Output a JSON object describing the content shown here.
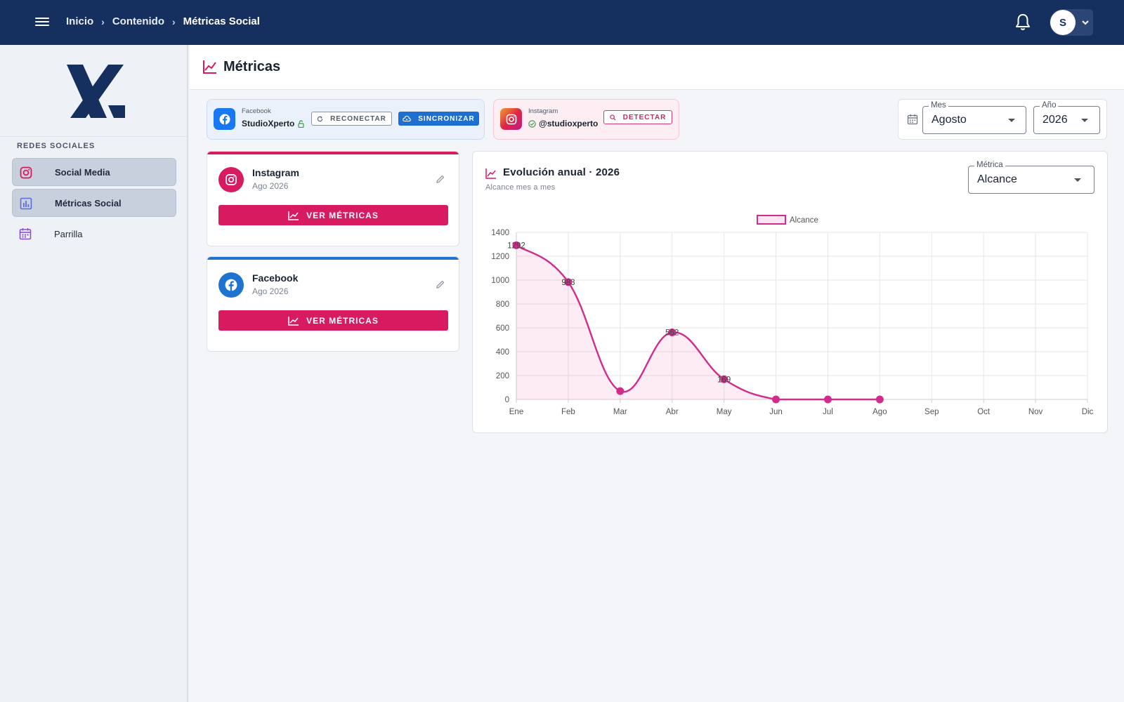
{
  "breadcrumb": [
    "Inicio",
    "Contenido",
    "Métricas Social"
  ],
  "user": {
    "initial": "S"
  },
  "sidebar": {
    "section": "REDES SOCIALES",
    "items": [
      {
        "label": "Social Media",
        "icon": "instagram-icon",
        "active": true
      },
      {
        "label": "Métricas Social",
        "icon": "bar-chart-icon",
        "active": true
      },
      {
        "label": "Parrilla",
        "icon": "calendar-icon",
        "active": false
      }
    ]
  },
  "page": {
    "title": "Métricas"
  },
  "connections": {
    "facebook": {
      "network": "Facebook",
      "account": "StudioXperto",
      "reconnect": "RECONECTAR",
      "sync": "SINCRONIZAR"
    },
    "instagram": {
      "network": "Instagram",
      "account": "@studioxperto",
      "detect": "DETECTAR"
    }
  },
  "filters": {
    "month_label": "Mes",
    "month_value": "Agosto",
    "year_label": "Año",
    "year_value": "2026"
  },
  "cards": [
    {
      "name": "Instagram",
      "period": "Ago 2026",
      "button": "VER MÉTRICAS",
      "color": "#d81b60"
    },
    {
      "name": "Facebook",
      "period": "Ago 2026",
      "button": "VER MÉTRICAS",
      "color": "#1e72d0"
    }
  ],
  "chart_panel": {
    "title": "Evolución anual · 2026",
    "subtitle": "Alcance mes a mes",
    "metric_label": "Métrica",
    "metric_value": "Alcance"
  },
  "colors": {
    "accent": "#d81b60",
    "line": "#d12c8c",
    "topbar": "#15305f"
  },
  "chart_data": {
    "type": "line",
    "categories": [
      "Ene",
      "Feb",
      "Mar",
      "Abr",
      "May",
      "Jun",
      "Jul",
      "Ago",
      "Sep",
      "Oct",
      "Nov",
      "Dic"
    ],
    "series": [
      {
        "name": "Alcance",
        "values": [
          1292,
          983,
          70,
          562,
          169,
          0,
          0,
          0,
          null,
          null,
          null,
          null
        ],
        "labels": [
          "1292",
          "983",
          "",
          "562",
          "169",
          "",
          "",
          "",
          "",
          "",
          "",
          ""
        ]
      }
    ],
    "ylim": [
      0,
      1400
    ],
    "yticks": [
      0,
      200,
      400,
      600,
      800,
      1000,
      1200,
      1400
    ],
    "legend": "top",
    "grid": true,
    "fill": true
  }
}
